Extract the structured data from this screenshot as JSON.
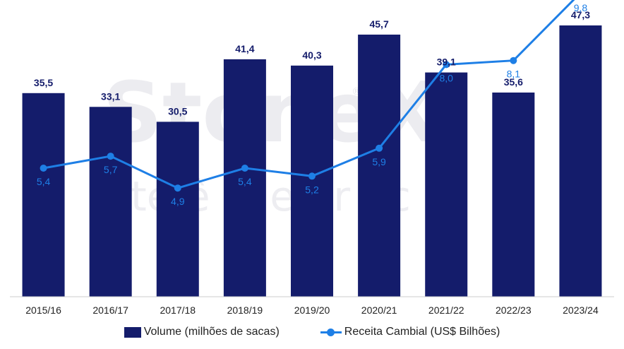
{
  "chart_data": {
    "type": "bar",
    "categories": [
      "2015/16",
      "2016/17",
      "2017/18",
      "2018/19",
      "2019/20",
      "2020/21",
      "2021/22",
      "2022/23",
      "2023/24"
    ],
    "series": [
      {
        "name": "Volume (milhões de sacas)",
        "type": "bar",
        "values": [
          35.5,
          33.1,
          30.5,
          41.4,
          40.3,
          45.7,
          39.1,
          35.6,
          47.3
        ],
        "labels": [
          "35,5",
          "33,1",
          "30,5",
          "41,4",
          "40,3",
          "45,7",
          "39,1",
          "35,6",
          "47,3"
        ]
      },
      {
        "name": "Receita Cambial (US$ Bilhões)",
        "type": "line",
        "values": [
          5.4,
          5.7,
          4.9,
          5.4,
          5.2,
          5.9,
          8.0,
          8.1,
          9.8
        ],
        "labels": [
          "5,4",
          "5,7",
          "4,9",
          "5,4",
          "5,2",
          "5,9",
          "8,0",
          "8,1",
          "9,8"
        ]
      }
    ],
    "legend_position": "bottom",
    "grid": false
  },
  "watermark": {
    "logo_text": "StoneX",
    "trademark": "®",
    "tagline": "te   ê  ci   e  er  ac"
  },
  "colors": {
    "bar": "#141c6b",
    "line": "#1e7fe6",
    "baseline": "#cccccc"
  }
}
